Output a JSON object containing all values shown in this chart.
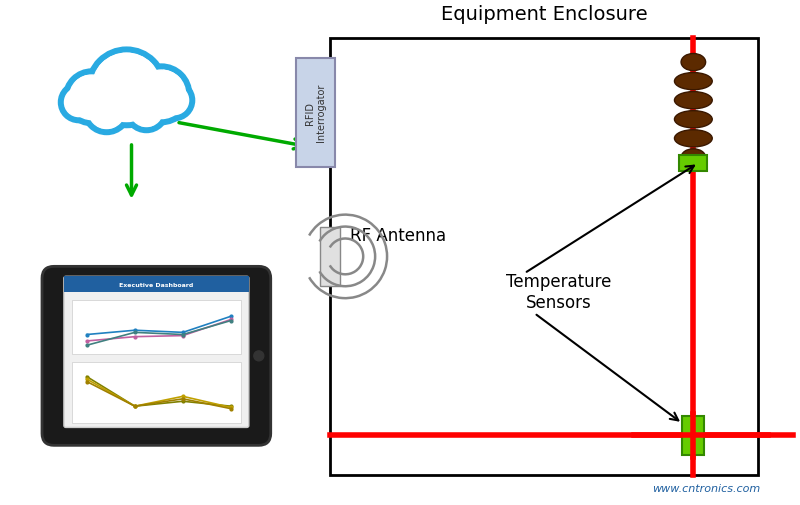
{
  "title_enclosure": "Equipment Enclosure",
  "label_rfid": "RFID\nInterrogator",
  "label_antenna": "RF Antenna",
  "label_temp": "Temperature\nSensors",
  "label_watermark": "www.cntronics.com",
  "bg_color": "#ffffff",
  "enclosure_color": "#000000",
  "wire_color": "#ff0000",
  "cloud_color": "#29aae2",
  "arrow_color": "#00aa00",
  "sensor_green": "#66cc00",
  "rfid_box_color": "#c8d4e8",
  "antenna_box_color": "#d8d8d8"
}
